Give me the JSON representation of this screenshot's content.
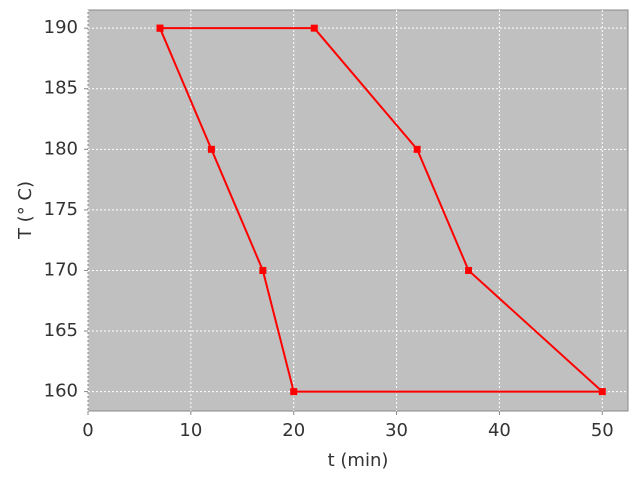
{
  "chart_data": {
    "type": "line",
    "x_label": "t (min)",
    "y_label": "T (° C)",
    "x": [
      7,
      22,
      32,
      37,
      50,
      20,
      17,
      12,
      7
    ],
    "series": [
      {
        "color": "#ff0000",
        "values": [
          190,
          190,
          180,
          170,
          160,
          160,
          170,
          180,
          190
        ]
      }
    ],
    "xlim": [
      0,
      52.5
    ],
    "ylim": [
      158.4,
      191.5
    ],
    "xticks": [
      0,
      10,
      20,
      30,
      40,
      50
    ],
    "yticks": [
      160,
      165,
      170,
      175,
      180,
      185,
      190
    ],
    "grid": true
  }
}
